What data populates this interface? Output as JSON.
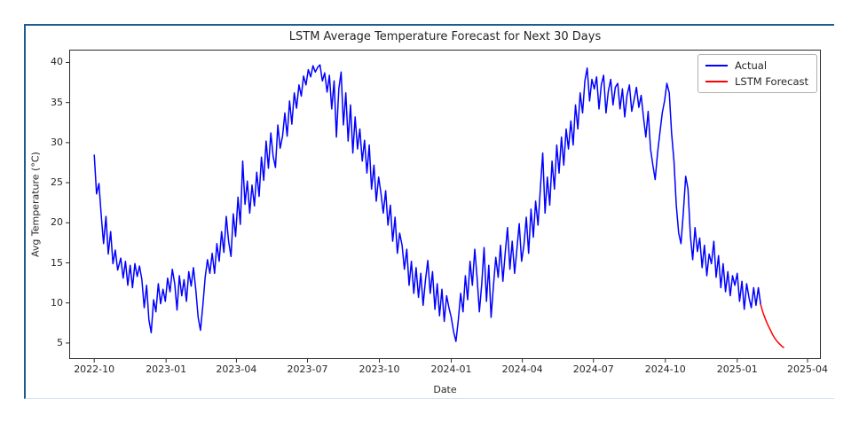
{
  "colors": {
    "card_border": "#1d5c8f",
    "card_bottom_border": "#d9e4ee",
    "axis_spine": "#2a2a2a",
    "text": "#262626",
    "actual_line": "#0000ff",
    "forecast_line": "#ff0000"
  },
  "chart_data": {
    "type": "line",
    "title": "LSTM Average Temperature Forecast for Next 30 Days",
    "xlabel": "Date",
    "ylabel": "Avg Temperature (°C)",
    "grid": false,
    "xlim_days": [
      -32,
      930
    ],
    "ylim": [
      3.0,
      41.6
    ],
    "yticks": [
      5,
      10,
      15,
      20,
      25,
      30,
      35,
      40
    ],
    "xticks": [
      {
        "label": "2022-10",
        "day": 0
      },
      {
        "label": "2023-01",
        "day": 92
      },
      {
        "label": "2023-04",
        "day": 182
      },
      {
        "label": "2023-07",
        "day": 273
      },
      {
        "label": "2023-10",
        "day": 365
      },
      {
        "label": "2024-01",
        "day": 457
      },
      {
        "label": "2024-04",
        "day": 548
      },
      {
        "label": "2024-07",
        "day": 639
      },
      {
        "label": "2024-10",
        "day": 731
      },
      {
        "label": "2025-01",
        "day": 823
      },
      {
        "label": "2025-04",
        "day": 913
      }
    ],
    "legend": {
      "position": "upper right",
      "entries": [
        {
          "label": "Actual",
          "color": "#0000ff"
        },
        {
          "label": "LSTM Forecast",
          "color": "#ff0000"
        }
      ]
    },
    "series": [
      {
        "name": "Actual",
        "data_name": "actual-line",
        "color": "#0000ff",
        "points": [
          [
            0,
            28.5
          ],
          [
            3,
            23.6
          ],
          [
            6,
            24.9
          ],
          [
            9,
            20.9
          ],
          [
            12,
            17.4
          ],
          [
            15,
            20.8
          ],
          [
            18,
            16.1
          ],
          [
            21,
            18.9
          ],
          [
            24,
            14.9
          ],
          [
            27,
            16.6
          ],
          [
            30,
            14.1
          ],
          [
            34,
            15.6
          ],
          [
            37,
            13.1
          ],
          [
            40,
            15.2
          ],
          [
            43,
            12.2
          ],
          [
            46,
            14.7
          ],
          [
            49,
            11.9
          ],
          [
            52,
            14.9
          ],
          [
            55,
            13.3
          ],
          [
            58,
            14.6
          ],
          [
            61,
            12.9
          ],
          [
            64,
            9.4
          ],
          [
            67,
            12.2
          ],
          [
            70,
            7.9
          ],
          [
            73,
            6.3
          ],
          [
            76,
            10.4
          ],
          [
            79,
            8.9
          ],
          [
            82,
            12.4
          ],
          [
            85,
            9.9
          ],
          [
            88,
            11.7
          ],
          [
            91,
            10.2
          ],
          [
            94,
            13.1
          ],
          [
            97,
            11.4
          ],
          [
            100,
            14.2
          ],
          [
            103,
            12.4
          ],
          [
            106,
            9.1
          ],
          [
            109,
            13.4
          ],
          [
            112,
            10.9
          ],
          [
            115,
            12.9
          ],
          [
            118,
            10.2
          ],
          [
            121,
            13.9
          ],
          [
            124,
            12.1
          ],
          [
            127,
            14.4
          ],
          [
            130,
            11.7
          ],
          [
            133,
            8.2
          ],
          [
            136,
            6.6
          ],
          [
            139,
            9.7
          ],
          [
            142,
            13.2
          ],
          [
            145,
            15.4
          ],
          [
            148,
            13.7
          ],
          [
            151,
            16.2
          ],
          [
            154,
            13.7
          ],
          [
            157,
            17.4
          ],
          [
            160,
            15.2
          ],
          [
            163,
            18.9
          ],
          [
            166,
            16.3
          ],
          [
            169,
            20.8
          ],
          [
            172,
            17.7
          ],
          [
            175,
            15.8
          ],
          [
            178,
            21.1
          ],
          [
            181,
            18.3
          ],
          [
            184,
            23.2
          ],
          [
            187,
            19.8
          ],
          [
            190,
            27.7
          ],
          [
            193,
            22.3
          ],
          [
            196,
            25.2
          ],
          [
            199,
            21.2
          ],
          [
            202,
            24.7
          ],
          [
            205,
            22.1
          ],
          [
            208,
            26.3
          ],
          [
            211,
            23.3
          ],
          [
            214,
            28.2
          ],
          [
            217,
            25.3
          ],
          [
            220,
            30.2
          ],
          [
            223,
            26.8
          ],
          [
            226,
            31.2
          ],
          [
            229,
            28.3
          ],
          [
            232,
            26.9
          ],
          [
            235,
            32.2
          ],
          [
            238,
            29.3
          ],
          [
            241,
            30.8
          ],
          [
            244,
            33.7
          ],
          [
            247,
            30.8
          ],
          [
            250,
            35.2
          ],
          [
            253,
            32.3
          ],
          [
            256,
            36.2
          ],
          [
            259,
            34.3
          ],
          [
            262,
            37.2
          ],
          [
            265,
            35.8
          ],
          [
            268,
            38.3
          ],
          [
            271,
            37.2
          ],
          [
            274,
            39.1
          ],
          [
            277,
            38.2
          ],
          [
            280,
            39.6
          ],
          [
            283,
            38.8
          ],
          [
            286,
            39.4
          ],
          [
            289,
            39.7
          ],
          [
            292,
            37.7
          ],
          [
            295,
            38.7
          ],
          [
            298,
            36.3
          ],
          [
            301,
            38.4
          ],
          [
            304,
            34.2
          ],
          [
            307,
            37.7
          ],
          [
            310,
            30.7
          ],
          [
            313,
            36.7
          ],
          [
            316,
            38.8
          ],
          [
            319,
            32.2
          ],
          [
            322,
            36.2
          ],
          [
            325,
            30.2
          ],
          [
            328,
            34.7
          ],
          [
            331,
            28.7
          ],
          [
            334,
            33.2
          ],
          [
            337,
            29.2
          ],
          [
            340,
            31.7
          ],
          [
            343,
            27.7
          ],
          [
            346,
            30.3
          ],
          [
            349,
            26.2
          ],
          [
            352,
            29.7
          ],
          [
            355,
            24.2
          ],
          [
            358,
            27.2
          ],
          [
            361,
            22.7
          ],
          [
            364,
            25.7
          ],
          [
            367,
            23.7
          ],
          [
            370,
            21.2
          ],
          [
            373,
            24.0
          ],
          [
            376,
            19.7
          ],
          [
            379,
            22.2
          ],
          [
            382,
            17.7
          ],
          [
            385,
            20.7
          ],
          [
            388,
            16.2
          ],
          [
            391,
            18.7
          ],
          [
            394,
            17.2
          ],
          [
            397,
            14.2
          ],
          [
            400,
            16.7
          ],
          [
            403,
            12.2
          ],
          [
            406,
            15.2
          ],
          [
            409,
            11.2
          ],
          [
            412,
            14.4
          ],
          [
            415,
            10.7
          ],
          [
            418,
            13.7
          ],
          [
            421,
            9.7
          ],
          [
            424,
            12.9
          ],
          [
            427,
            15.3
          ],
          [
            430,
            11.2
          ],
          [
            433,
            13.9
          ],
          [
            436,
            9.2
          ],
          [
            439,
            12.4
          ],
          [
            442,
            8.4
          ],
          [
            445,
            11.7
          ],
          [
            448,
            7.7
          ],
          [
            451,
            10.9
          ],
          [
            454,
            9.4
          ],
          [
            457,
            8.2
          ],
          [
            460,
            6.4
          ],
          [
            463,
            5.2
          ],
          [
            466,
            7.9
          ],
          [
            469,
            11.2
          ],
          [
            472,
            8.9
          ],
          [
            475,
            13.4
          ],
          [
            478,
            10.4
          ],
          [
            481,
            15.2
          ],
          [
            484,
            12.2
          ],
          [
            487,
            16.7
          ],
          [
            490,
            13.2
          ],
          [
            493,
            8.9
          ],
          [
            496,
            12.4
          ],
          [
            499,
            16.9
          ],
          [
            502,
            10.2
          ],
          [
            505,
            14.7
          ],
          [
            508,
            8.2
          ],
          [
            511,
            12.2
          ],
          [
            514,
            15.7
          ],
          [
            517,
            13.2
          ],
          [
            520,
            17.2
          ],
          [
            523,
            12.7
          ],
          [
            526,
            16.2
          ],
          [
            529,
            19.4
          ],
          [
            532,
            14.2
          ],
          [
            535,
            17.7
          ],
          [
            538,
            13.7
          ],
          [
            541,
            16.7
          ],
          [
            544,
            19.9
          ],
          [
            547,
            15.2
          ],
          [
            550,
            17.2
          ],
          [
            553,
            20.7
          ],
          [
            556,
            16.2
          ],
          [
            559,
            21.7
          ],
          [
            562,
            18.2
          ],
          [
            565,
            22.7
          ],
          [
            568,
            19.7
          ],
          [
            571,
            24.2
          ],
          [
            574,
            28.7
          ],
          [
            577,
            21.2
          ],
          [
            580,
            25.7
          ],
          [
            583,
            22.2
          ],
          [
            586,
            27.7
          ],
          [
            589,
            24.2
          ],
          [
            592,
            29.7
          ],
          [
            595,
            26.2
          ],
          [
            598,
            30.7
          ],
          [
            601,
            27.2
          ],
          [
            604,
            31.7
          ],
          [
            607,
            29.2
          ],
          [
            610,
            32.7
          ],
          [
            613,
            29.7
          ],
          [
            616,
            34.7
          ],
          [
            619,
            31.7
          ],
          [
            622,
            36.2
          ],
          [
            625,
            33.7
          ],
          [
            628,
            37.7
          ],
          [
            631,
            39.3
          ],
          [
            634,
            35.2
          ],
          [
            637,
            37.9
          ],
          [
            640,
            36.7
          ],
          [
            643,
            38.2
          ],
          [
            646,
            34.2
          ],
          [
            649,
            37.2
          ],
          [
            652,
            38.4
          ],
          [
            655,
            33.7
          ],
          [
            658,
            36.4
          ],
          [
            661,
            37.9
          ],
          [
            664,
            34.7
          ],
          [
            667,
            36.9
          ],
          [
            670,
            37.4
          ],
          [
            673,
            34.2
          ],
          [
            676,
            36.7
          ],
          [
            679,
            33.2
          ],
          [
            682,
            35.9
          ],
          [
            685,
            37.2
          ],
          [
            688,
            33.9
          ],
          [
            691,
            35.4
          ],
          [
            694,
            36.9
          ],
          [
            697,
            34.4
          ],
          [
            700,
            35.9
          ],
          [
            703,
            33.2
          ],
          [
            706,
            30.7
          ],
          [
            709,
            33.9
          ],
          [
            712,
            29.2
          ],
          [
            715,
            27.2
          ],
          [
            718,
            25.4
          ],
          [
            721,
            28.7
          ],
          [
            724,
            31.2
          ],
          [
            727,
            33.7
          ],
          [
            730,
            35.2
          ],
          [
            733,
            37.4
          ],
          [
            736,
            36.2
          ],
          [
            739,
            31.2
          ],
          [
            742,
            27.7
          ],
          [
            745,
            22.2
          ],
          [
            748,
            18.7
          ],
          [
            751,
            17.4
          ],
          [
            754,
            21.2
          ],
          [
            757,
            25.8
          ],
          [
            760,
            24.2
          ],
          [
            763,
            18.4
          ],
          [
            766,
            15.4
          ],
          [
            769,
            19.4
          ],
          [
            772,
            16.4
          ],
          [
            775,
            18.1
          ],
          [
            778,
            14.4
          ],
          [
            781,
            17.2
          ],
          [
            784,
            13.4
          ],
          [
            787,
            16.1
          ],
          [
            790,
            14.9
          ],
          [
            793,
            17.7
          ],
          [
            796,
            13.2
          ],
          [
            799,
            15.9
          ],
          [
            802,
            11.9
          ],
          [
            805,
            14.9
          ],
          [
            808,
            11.4
          ],
          [
            811,
            13.9
          ],
          [
            814,
            10.9
          ],
          [
            817,
            13.4
          ],
          [
            820,
            12.2
          ],
          [
            823,
            13.7
          ],
          [
            826,
            10.2
          ],
          [
            829,
            12.7
          ],
          [
            832,
            9.2
          ],
          [
            835,
            12.4
          ],
          [
            838,
            10.7
          ],
          [
            841,
            9.4
          ],
          [
            844,
            11.9
          ],
          [
            847,
            9.7
          ],
          [
            850,
            11.9
          ],
          [
            853,
            9.8
          ]
        ]
      },
      {
        "name": "LSTM Forecast",
        "data_name": "forecast-line",
        "color": "#ff0000",
        "points": [
          [
            853,
            9.8
          ],
          [
            856,
            8.8
          ],
          [
            859,
            8.0
          ],
          [
            862,
            7.3
          ],
          [
            865,
            6.7
          ],
          [
            868,
            6.1
          ],
          [
            871,
            5.6
          ],
          [
            874,
            5.2
          ],
          [
            877,
            4.9
          ],
          [
            880,
            4.6
          ],
          [
            883,
            4.4
          ]
        ]
      }
    ]
  }
}
